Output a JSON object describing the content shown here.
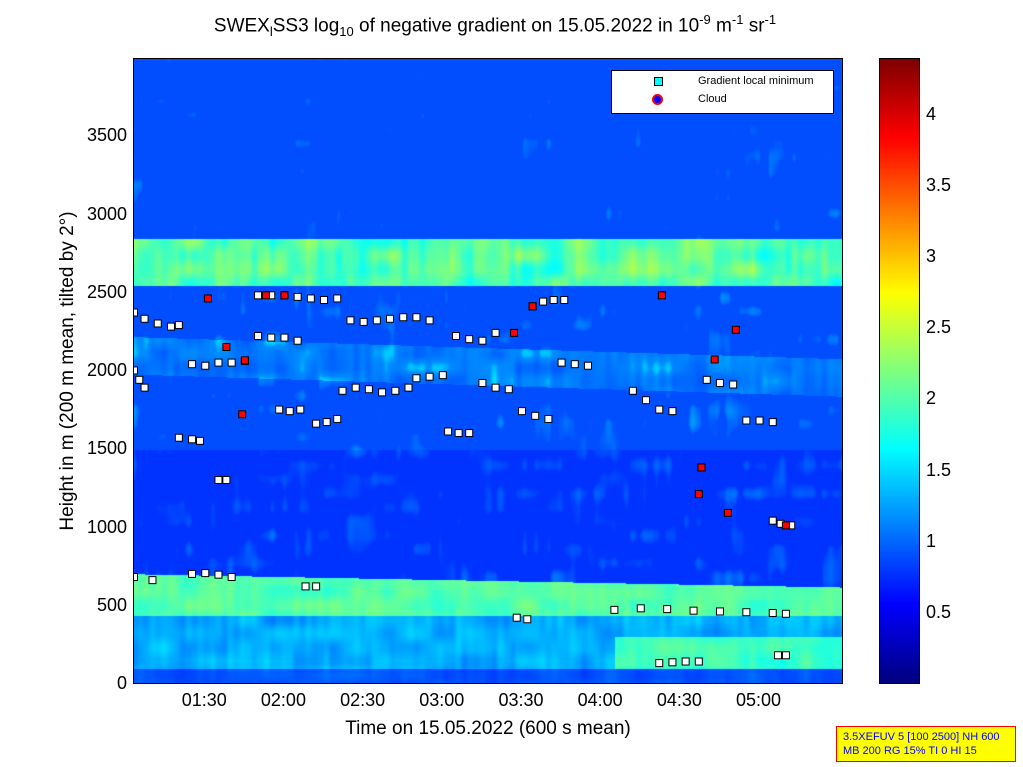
{
  "chart_data": {
    "type": "heatmap",
    "title": {
      "main": "SWEX",
      "sub1": "l",
      "mid": "SS3 log",
      "sub2": "10",
      "rest": " of negative gradient on 15.05.2022 in 10",
      "sup1": "-9",
      "m": " m",
      "sup2": "-1",
      "sr": " sr",
      "sup3": "-1"
    },
    "xlabel": "Time on 15.05.2022 (600 s mean)",
    "ylabel": "Height in m (200 m mean, tilted by 2°)",
    "xlim": [
      "01:03",
      "05:32"
    ],
    "ylim": [
      0,
      4000
    ],
    "xticks": [
      "01:30",
      "02:00",
      "02:30",
      "03:00",
      "03:30",
      "04:00",
      "04:30",
      "05:00"
    ],
    "yticks": [
      0,
      500,
      1000,
      1500,
      2000,
      2500,
      3000,
      3500
    ],
    "colormap": "jet",
    "clim": [
      0,
      4.4
    ],
    "colorbar_ticks": [
      0.5,
      1,
      1.5,
      2,
      2.5,
      3,
      3.5,
      4
    ],
    "legend": {
      "placement": "top-right",
      "entries": [
        {
          "label": "Gradient local minimum",
          "color": "#00ffff"
        },
        {
          "label": "Cloud",
          "color": "#ff0000"
        }
      ]
    },
    "gradient_local_minimum_tracks": [
      [
        [
          "01:03",
          "2380"
        ],
        [
          "01:07",
          "2340"
        ],
        [
          "01:12",
          "2310"
        ],
        [
          "01:17",
          "2290"
        ],
        [
          "01:20",
          "2300"
        ]
      ],
      [
        [
          "01:03",
          "2010"
        ],
        [
          "01:05",
          "1950"
        ],
        [
          "01:07",
          "1900"
        ]
      ],
      [
        [
          "01:25",
          "2050"
        ],
        [
          "01:30",
          "2040"
        ],
        [
          "01:35",
          "2060"
        ],
        [
          "01:40",
          "2060"
        ],
        [
          "01:45",
          "2070"
        ]
      ],
      [
        [
          "01:50",
          "2490"
        ],
        [
          "01:55",
          "2490"
        ],
        [
          "02:00",
          "2490"
        ]
      ],
      [
        [
          "01:50",
          "2230"
        ],
        [
          "01:55",
          "2220"
        ],
        [
          "02:00",
          "2220"
        ],
        [
          "02:05",
          "2200"
        ]
      ],
      [
        [
          "02:05",
          "2480"
        ],
        [
          "02:10",
          "2470"
        ],
        [
          "02:15",
          "2460"
        ],
        [
          "02:20",
          "2470"
        ]
      ],
      [
        [
          "02:25",
          "2330"
        ],
        [
          "02:30",
          "2320"
        ],
        [
          "02:35",
          "2330"
        ],
        [
          "02:40",
          "2340"
        ],
        [
          "02:45",
          "2350"
        ],
        [
          "02:50",
          "2350"
        ],
        [
          "02:55",
          "2330"
        ]
      ],
      [
        [
          "01:58",
          "1760"
        ],
        [
          "02:02",
          "1750"
        ],
        [
          "02:06",
          "1760"
        ]
      ],
      [
        [
          "02:12",
          "1670"
        ],
        [
          "02:16",
          "1680"
        ],
        [
          "02:20",
          "1700"
        ]
      ],
      [
        [
          "02:22",
          "1880"
        ],
        [
          "02:27",
          "1900"
        ],
        [
          "02:32",
          "1890"
        ],
        [
          "02:37",
          "1870"
        ],
        [
          "02:42",
          "1880"
        ],
        [
          "02:47",
          "1900"
        ]
      ],
      [
        [
          "02:50",
          "1960"
        ],
        [
          "02:55",
          "1970"
        ],
        [
          "03:00",
          "1980"
        ]
      ],
      [
        [
          "03:05",
          "2230"
        ],
        [
          "03:10",
          "2210"
        ],
        [
          "03:15",
          "2200"
        ],
        [
          "03:20",
          "2250"
        ]
      ],
      [
        [
          "03:15",
          "1930"
        ],
        [
          "03:20",
          "1900"
        ],
        [
          "03:25",
          "1890"
        ]
      ],
      [
        [
          "03:02",
          "1620"
        ],
        [
          "03:06",
          "1610"
        ],
        [
          "03:10",
          "1610"
        ]
      ],
      [
        [
          "03:34",
          "2420"
        ],
        [
          "03:38",
          "2450"
        ],
        [
          "03:42",
          "2460"
        ],
        [
          "03:46",
          "2460"
        ]
      ],
      [
        [
          "03:30",
          "1750"
        ],
        [
          "03:35",
          "1720"
        ],
        [
          "03:40",
          "1700"
        ]
      ],
      [
        [
          "03:45",
          "2060"
        ],
        [
          "03:50",
          "2050"
        ],
        [
          "03:55",
          "2040"
        ]
      ],
      [
        [
          "04:12",
          "1880"
        ],
        [
          "04:17",
          "1820"
        ],
        [
          "04:22",
          "1760"
        ],
        [
          "04:27",
          "1750"
        ]
      ],
      [
        [
          "04:40",
          "1950"
        ],
        [
          "04:45",
          "1930"
        ],
        [
          "04:50",
          "1920"
        ]
      ],
      [
        [
          "04:55",
          "1690"
        ],
        [
          "05:00",
          "1690"
        ],
        [
          "05:05",
          "1680"
        ]
      ],
      [
        [
          "05:05",
          "1050"
        ],
        [
          "05:08",
          "1030"
        ],
        [
          "05:12",
          "1020"
        ]
      ],
      [
        [
          "01:20",
          "1580"
        ],
        [
          "01:25",
          "1570"
        ],
        [
          "01:28",
          "1560"
        ]
      ],
      [
        [
          "01:35",
          "1310"
        ],
        [
          "01:38",
          "1310"
        ]
      ],
      [
        [
          "01:03",
          "690"
        ],
        [
          "01:10",
          "670"
        ]
      ],
      [
        [
          "01:25",
          "710"
        ],
        [
          "01:30",
          "715"
        ],
        [
          "01:35",
          "705"
        ],
        [
          "01:40",
          "690"
        ]
      ],
      [
        [
          "02:08",
          "630"
        ],
        [
          "02:12",
          "630"
        ]
      ],
      [
        [
          "03:28",
          "430"
        ],
        [
          "03:32",
          "420"
        ]
      ],
      [
        [
          "04:05",
          "480"
        ],
        [
          "04:15",
          "490"
        ],
        [
          "04:25",
          "485"
        ],
        [
          "04:35",
          "475"
        ],
        [
          "04:45",
          "470"
        ],
        [
          "04:55",
          "465"
        ],
        [
          "05:05",
          "460"
        ],
        [
          "05:10",
          "455"
        ]
      ],
      [
        [
          "04:22",
          "140"
        ],
        [
          "04:27",
          "145"
        ],
        [
          "04:32",
          "150"
        ],
        [
          "04:37",
          "150"
        ]
      ],
      [
        [
          "05:07",
          "190"
        ],
        [
          "05:10",
          "190"
        ]
      ]
    ],
    "cloud_points": [
      [
        "01:31",
        "2470"
      ],
      [
        "01:53",
        "2490"
      ],
      [
        "02:00",
        "2490"
      ],
      [
        "01:45",
        "2075"
      ],
      [
        "01:44",
        "1730"
      ],
      [
        "01:38",
        "2160"
      ],
      [
        "03:27",
        "2250"
      ],
      [
        "03:34",
        "2420"
      ],
      [
        "04:23",
        "2490"
      ],
      [
        "04:51",
        "2270"
      ],
      [
        "04:37",
        "1220"
      ],
      [
        "04:38",
        "1390"
      ],
      [
        "04:48",
        "1100"
      ],
      [
        "05:10",
        "1020"
      ],
      [
        "04:43",
        "2080"
      ]
    ]
  },
  "info_box": {
    "line1": "3.5XEFUV 5 [100 2500] NH 600",
    "line2": "MB 200 RG 15% TI 0 HI 15"
  }
}
